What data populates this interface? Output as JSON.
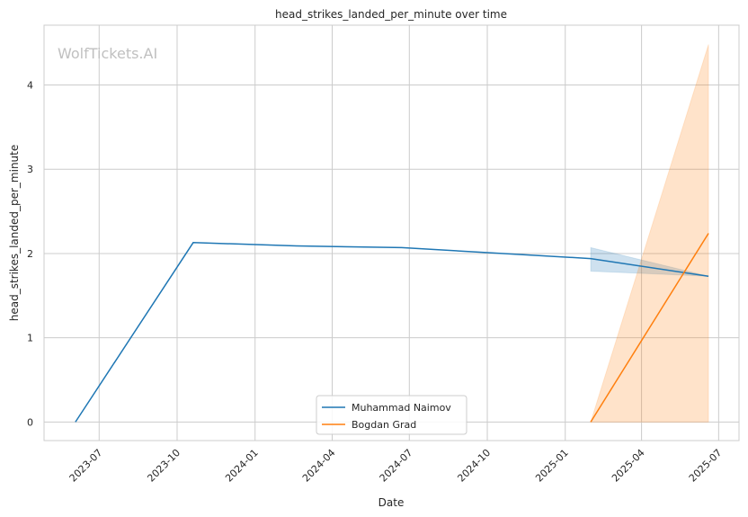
{
  "chart_data": {
    "type": "line",
    "title": "head_strikes_landed_per_minute over time",
    "xlabel": "Date",
    "ylabel": "head_strikes_landed_per_minute",
    "watermark": "WolfTickets.AI",
    "xlim": [
      "2023-04-27",
      "2025-07-25"
    ],
    "ylim": [
      -0.22,
      4.71
    ],
    "grid": true,
    "legend_position": "bottom-center",
    "x_ticks": [
      "2023-07-01",
      "2023-10-01",
      "2024-01-01",
      "2024-04-01",
      "2024-07-01",
      "2024-10-01",
      "2025-01-01",
      "2025-04-01",
      "2025-07-01"
    ],
    "x_tick_labels": [
      "2023-07",
      "2023-10",
      "2024-01",
      "2024-04",
      "2024-07",
      "2024-10",
      "2025-01",
      "2025-04",
      "2025-07"
    ],
    "y_ticks": [
      0,
      1,
      2,
      3,
      4
    ],
    "y_tick_labels": [
      "0",
      "1",
      "2",
      "3",
      "4"
    ],
    "series": [
      {
        "name": "Muhammad Naimov",
        "color": "#1f77b4",
        "x": [
          "2023-06-03",
          "2023-10-20",
          "2024-02-19",
          "2024-06-22",
          "2025-01-31",
          "2025-06-19"
        ],
        "y": [
          0,
          2.13,
          2.09,
          2.07,
          1.94,
          1.73
        ],
        "ci": [
          {
            "x": "2025-01-31",
            "low": 1.79,
            "high": 2.07
          },
          {
            "x": "2025-06-19",
            "low": 1.73,
            "high": 1.73
          }
        ]
      },
      {
        "name": "Bogdan Grad",
        "color": "#ff7f0e",
        "x": [
          "2025-01-31",
          "2025-06-19"
        ],
        "y": [
          0,
          2.24
        ],
        "ci": [
          {
            "x": "2025-01-31",
            "low": 0,
            "high": 0
          },
          {
            "x": "2025-06-19",
            "low": 0,
            "high": 4.48
          }
        ]
      }
    ]
  }
}
